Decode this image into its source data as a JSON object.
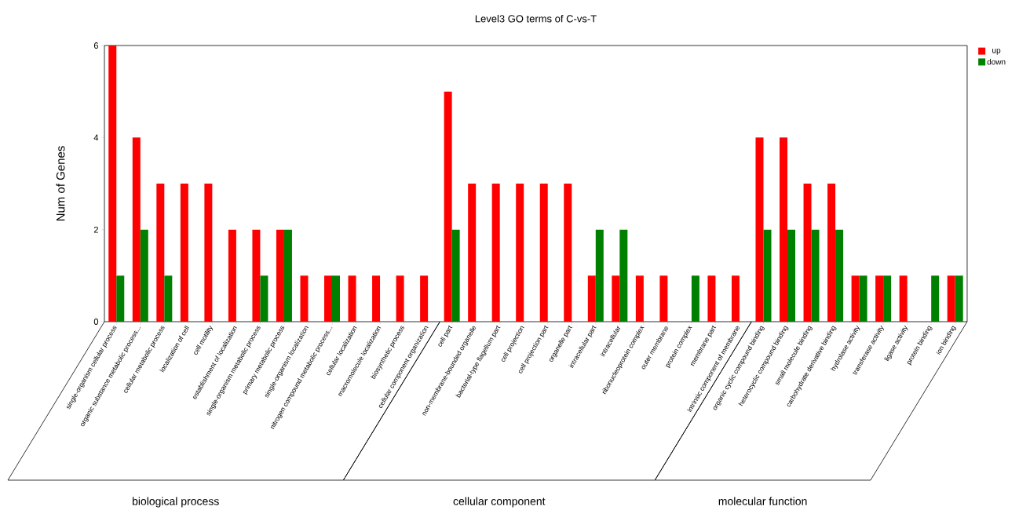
{
  "chart_data": {
    "type": "bar",
    "title": "Level3 GO terms of C-vs-T",
    "ylabel": "Num of Genes",
    "categories": [
      "single-organism cellular process",
      "organic substance metabolic process...",
      "cellular metabolic process",
      "localization of cell",
      "cell motility",
      "establishment of localization",
      "single-organism metabolic process",
      "primary metabolic process",
      "single-organism localization",
      "nitrogen compound metabolic process...",
      "cellular localization",
      "macromolecule localization",
      "biosynthetic process",
      "cellular component organization",
      "cell part",
      "non-membrane-bounded organelle",
      "bacterial-type flagellum part",
      "cell projection",
      "cell projection part",
      "organelle part",
      "intracellular part",
      "intracellular",
      "ribonucleoprotein complex",
      "outer membrane",
      "protein complex",
      "membrane part",
      "intrinsic component of membrane",
      "organic cyclic compound binding",
      "heterocyclic compound binding",
      "small molecule binding",
      "carbohydrate derivative binding",
      "hydrolase activity",
      "transferase activity",
      "ligase activity",
      "protein binding",
      "ion binding"
    ],
    "series": [
      {
        "name": "up",
        "color": "#ff0000",
        "values": [
          6,
          4,
          3,
          3,
          3,
          2,
          2,
          2,
          1,
          1,
          1,
          1,
          1,
          1,
          5,
          3,
          3,
          3,
          3,
          3,
          1,
          1,
          1,
          1,
          0,
          1,
          1,
          4,
          4,
          3,
          3,
          1,
          1,
          1,
          0,
          1
        ]
      },
      {
        "name": "down",
        "color": "#008000",
        "values": [
          1,
          2,
          1,
          0,
          0,
          0,
          1,
          2,
          0,
          1,
          0,
          0,
          0,
          0,
          2,
          0,
          0,
          0,
          0,
          0,
          2,
          2,
          0,
          0,
          1,
          0,
          0,
          2,
          2,
          2,
          2,
          1,
          1,
          0,
          1,
          1
        ]
      }
    ],
    "ylim": [
      0,
      6
    ],
    "yticks": [
      0,
      2,
      4,
      6
    ],
    "grid": false,
    "legend": "top right",
    "annotations": [
      "biological process",
      "cellular component",
      "molecular function"
    ]
  }
}
